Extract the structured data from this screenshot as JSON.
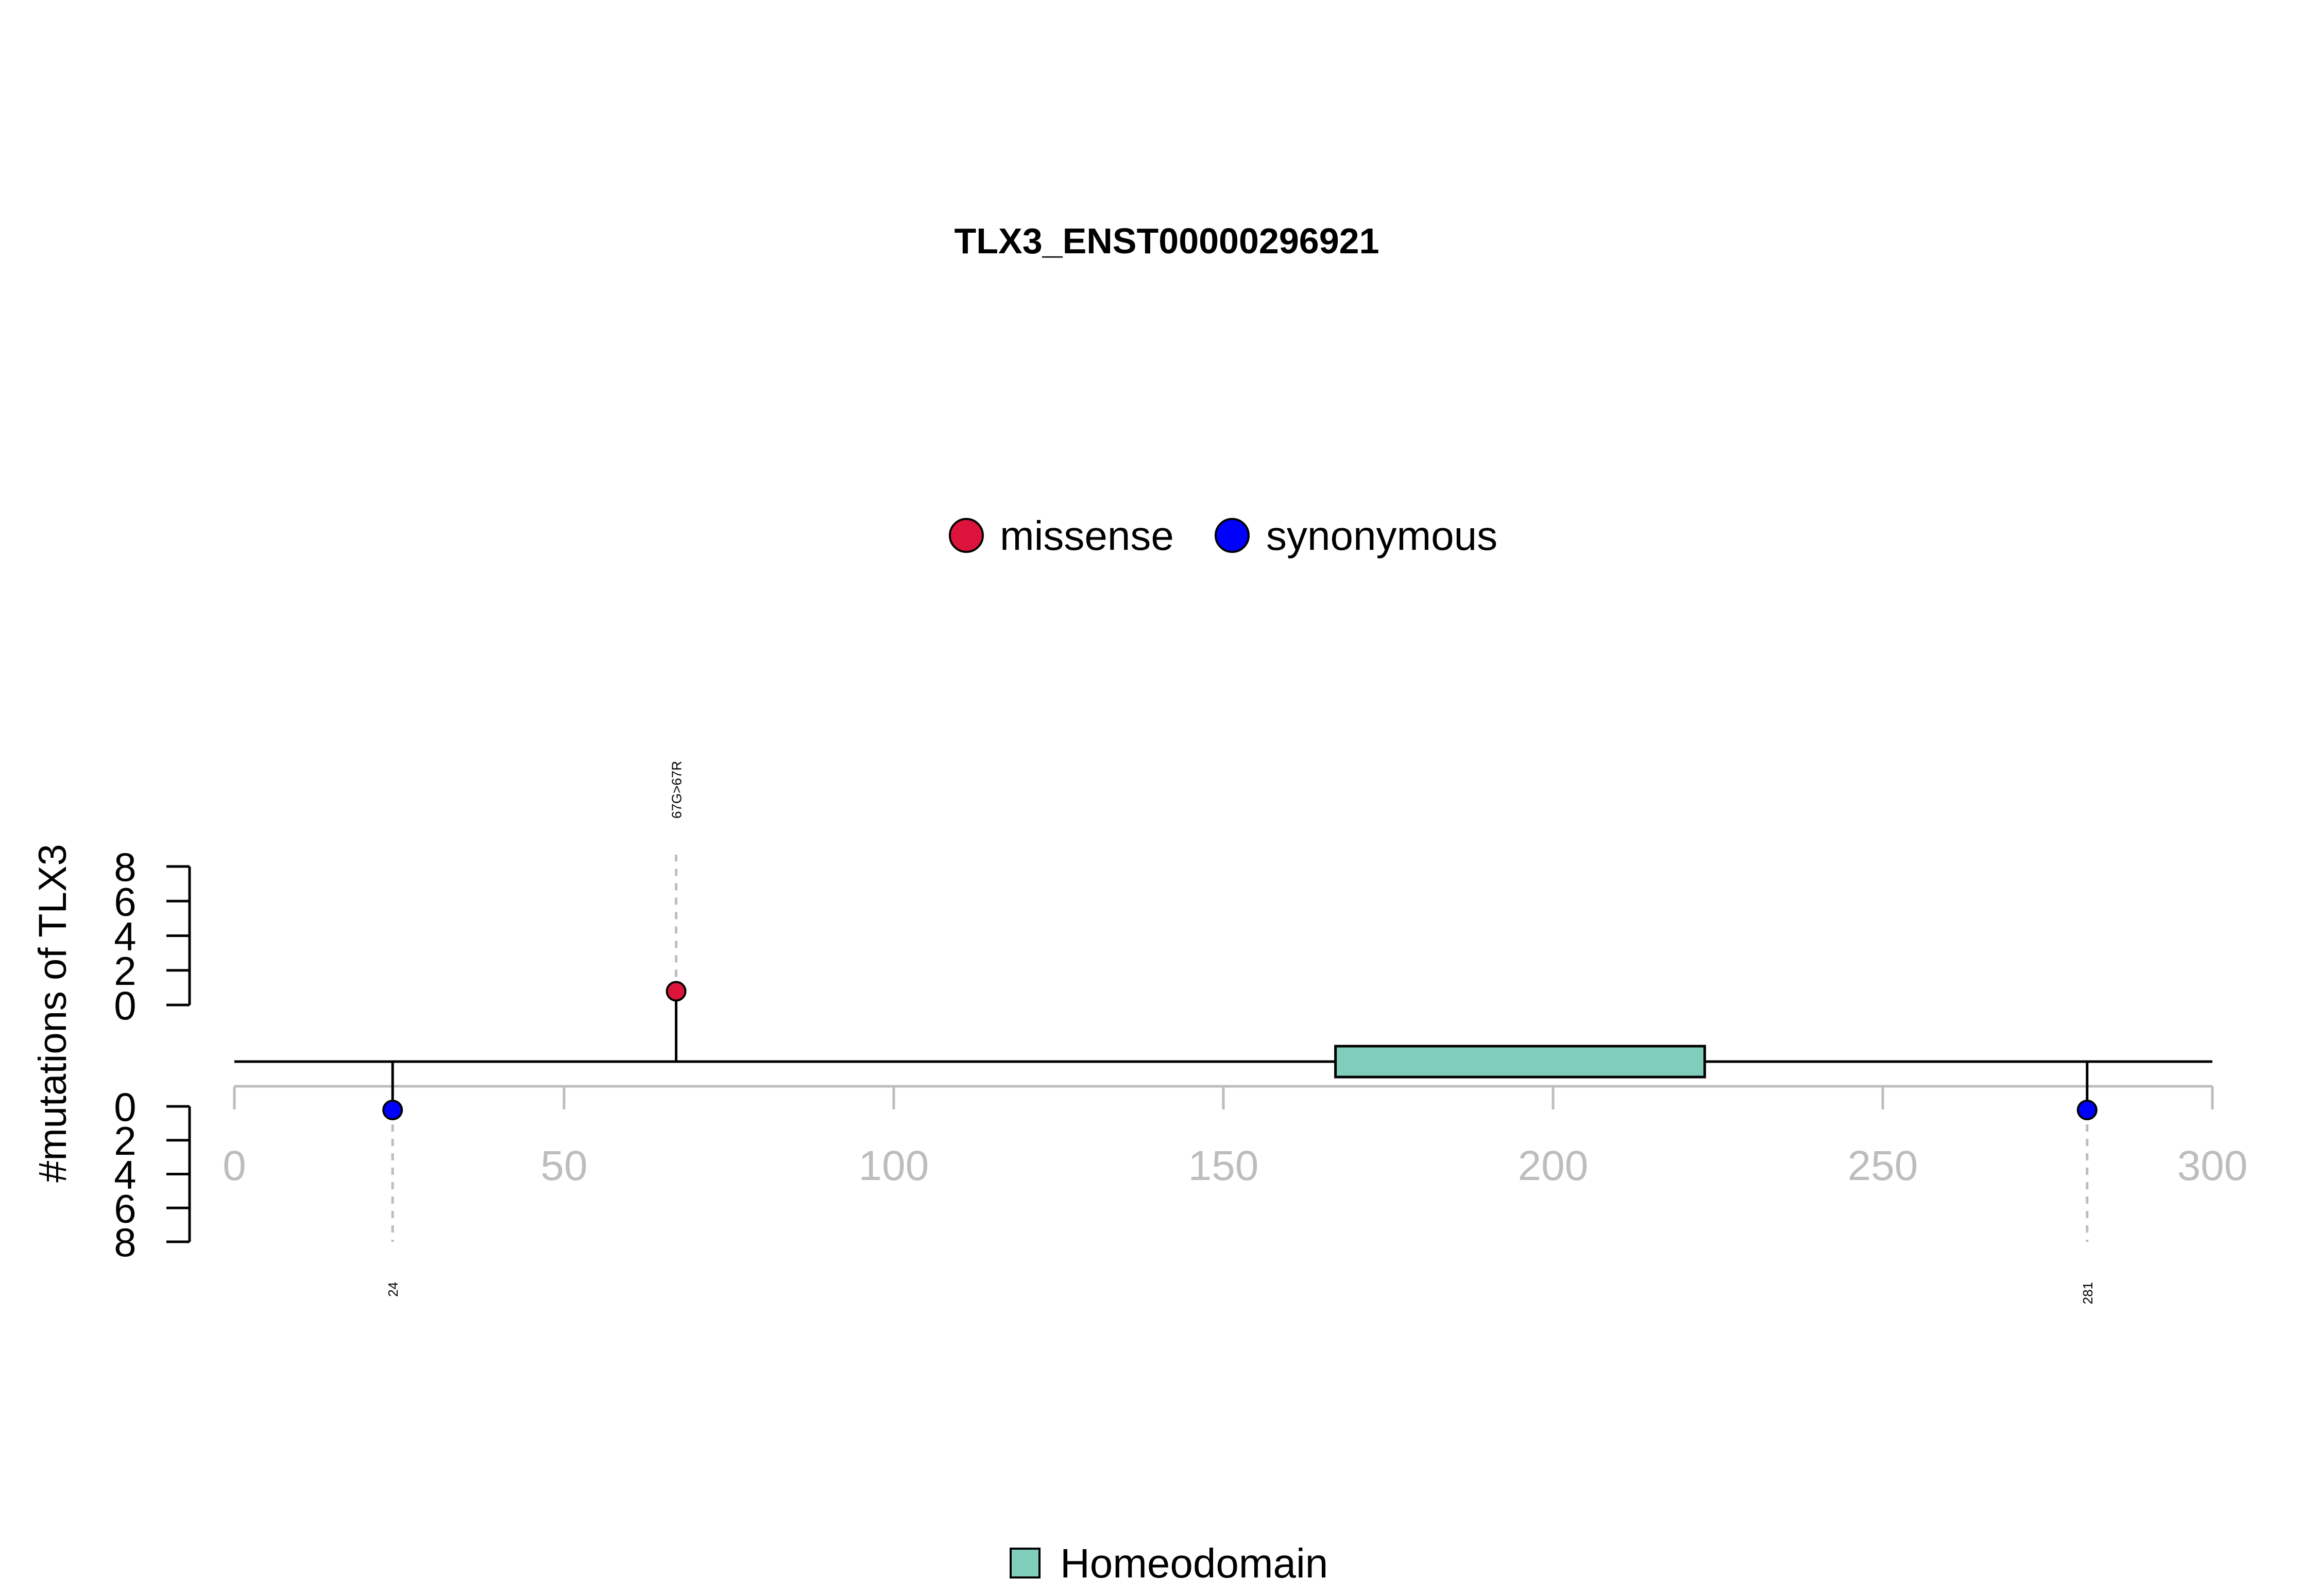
{
  "chart_data": {
    "type": "lollipop",
    "title": "TLX3_ENST00000296921",
    "ylabel": "#mutations of TLX3",
    "xlim": [
      0,
      300
    ],
    "x_ticks": [
      0,
      50,
      100,
      150,
      200,
      250,
      300
    ],
    "ylim_upper": [
      0,
      8
    ],
    "ylim_lower": [
      0,
      8
    ],
    "y_ticks_upper": [
      0,
      2,
      4,
      6,
      8
    ],
    "y_ticks_lower": [
      0,
      2,
      4,
      6,
      8
    ],
    "legend_mutations": [
      {
        "label": "missense",
        "color": "#dc143c"
      },
      {
        "label": "synonymous",
        "color": "#0000ff"
      }
    ],
    "legend_domains": [
      {
        "label": "Homeodomain",
        "color": "#7fcdbb"
      }
    ],
    "mutations": [
      {
        "position": 67,
        "count": 1,
        "type": "missense",
        "side": "upper",
        "label": "67G>67R",
        "color": "#dc143c"
      },
      {
        "position": 24,
        "count": 1,
        "type": "synonymous",
        "side": "lower",
        "label": "24",
        "color": "#0000ff"
      },
      {
        "position": 281,
        "count": 1,
        "type": "synonymous",
        "side": "lower",
        "label": "281",
        "color": "#0000ff"
      }
    ],
    "domains": [
      {
        "name": "Homeodomain",
        "start": 167,
        "end": 223,
        "color": "#7fcdbb"
      }
    ],
    "protein_length": 300,
    "grid": false,
    "legend_position": "top-center"
  }
}
